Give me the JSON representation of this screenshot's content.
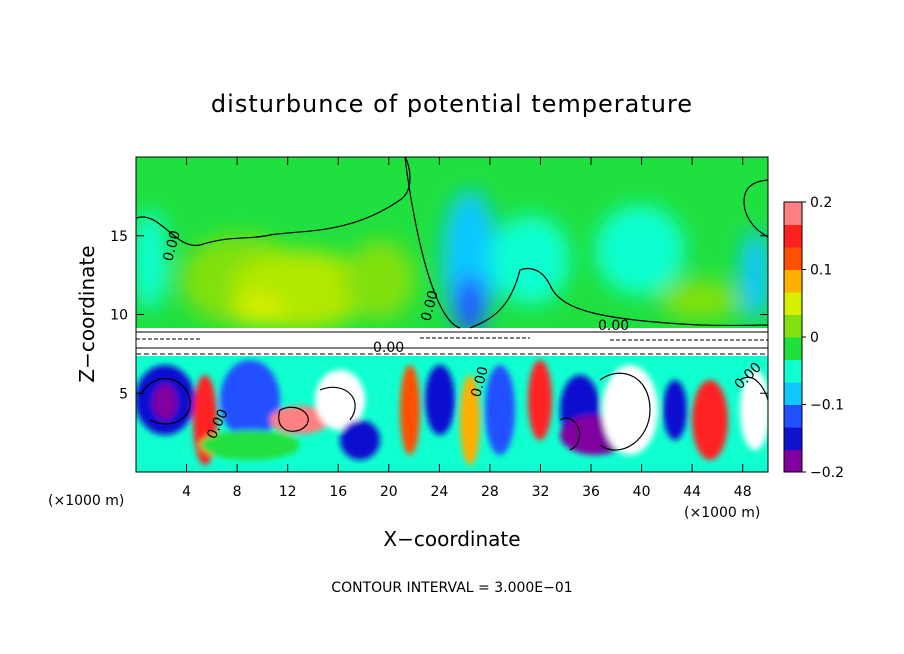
{
  "chart_data": {
    "type": "heatmap",
    "title": "disturbunce of potential temperature",
    "xlabel": "X−coordinate",
    "ylabel": "Z−coordinate",
    "x_unit": "(×1000 m)",
    "y_unit": "(×1000 m)",
    "xlim": [
      0,
      50
    ],
    "ylim": [
      0,
      20
    ],
    "x_ticks": [
      4,
      8,
      12,
      16,
      20,
      24,
      28,
      32,
      36,
      40,
      44,
      48
    ],
    "y_ticks": [
      5,
      10,
      15
    ],
    "colorbar": {
      "range": [
        -0.2,
        0.2
      ],
      "tick_values": [
        0.2,
        0.1,
        0,
        -0.1,
        -0.2
      ],
      "tick_labels": [
        "0.2",
        "0.1",
        "0",
        "−0.1",
        "−0.2"
      ],
      "colors": [
        "#8000a0",
        "#1010d0",
        "#2050ff",
        "#10c8ff",
        "#10ffd0",
        "#20e040",
        "#80e010",
        "#d8f000",
        "#ffb000",
        "#ff5000",
        "#ff2020",
        "#ff8080"
      ]
    },
    "contour_interval_text": "CONTOUR INTERVAL = 3.000E−01",
    "contour_labels": [
      "0.00",
      "0.00",
      "0.00",
      "0.00",
      "0.00",
      "0.00",
      "0.00"
    ],
    "regions": [
      {
        "name": "upper-layer",
        "zmin": 9,
        "zmax": 20,
        "note": "mostly near-zero values (green) with weak positive (yellow) and negative (cyan/blue) patches"
      },
      {
        "name": "lower-layer",
        "zmin": 0,
        "zmax": 7.5,
        "note": "strong oscillating disturbances spanning the full colour range"
      }
    ]
  }
}
